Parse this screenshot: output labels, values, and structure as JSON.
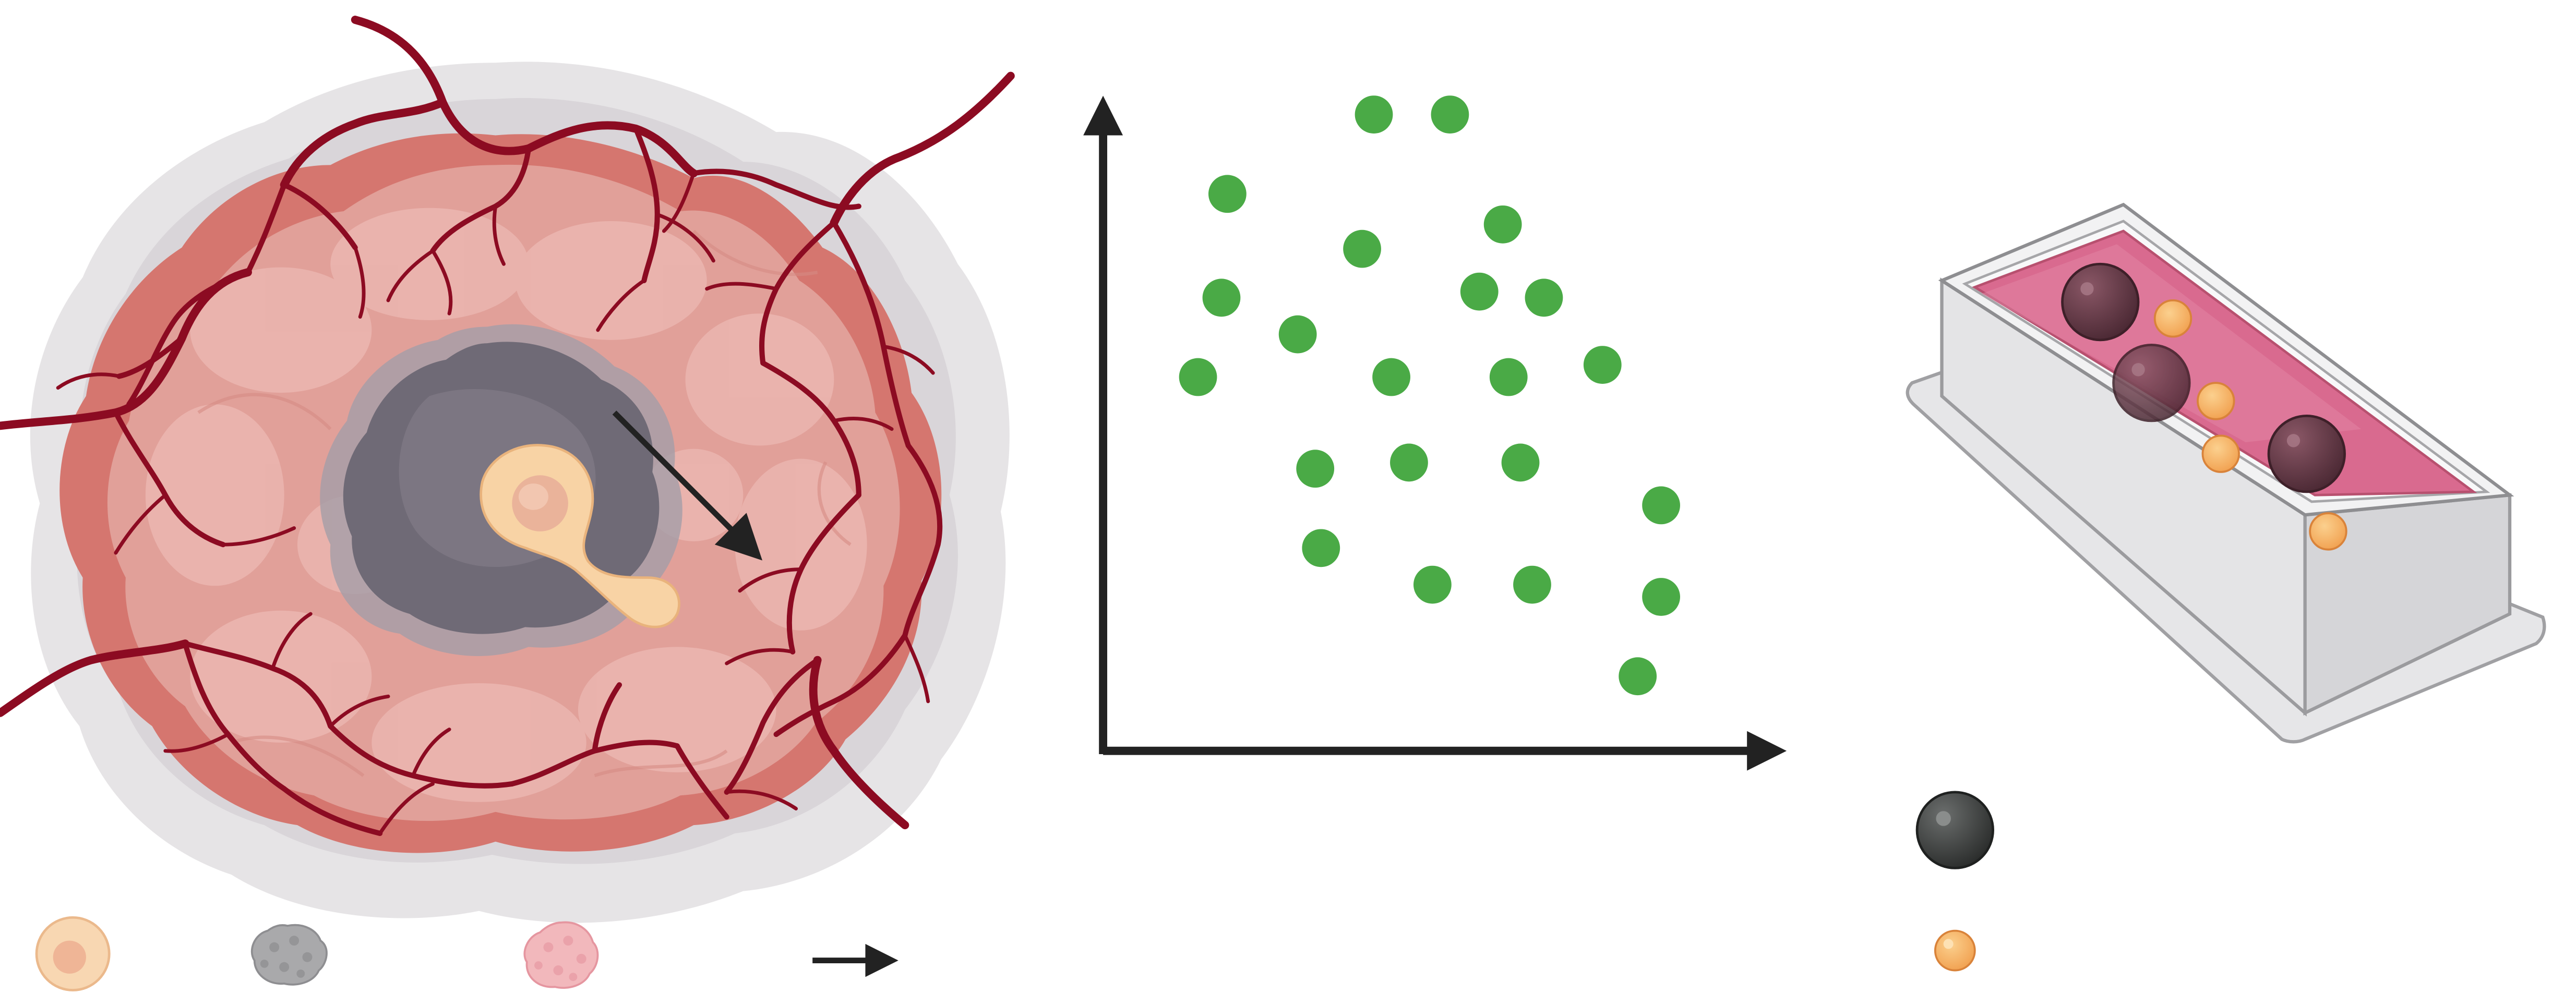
{
  "colors": {
    "vessel": "#8c0b22",
    "tumor_outer_halo": "#dedbde",
    "tumor_rim": "#d9807a",
    "tumor_body": "#e3a39c",
    "tumor_lobe": "#eebbb5",
    "necrotic_core": "#6d6874",
    "cell_body": "#f8d3a5",
    "cell_nucleus": "#eab39a",
    "scatter_point": "#4aaa46",
    "axis": "#222222",
    "tray_wall": "#e3e3e5",
    "tray_outline": "#9b9b9e",
    "gel": "#d96a8f",
    "bead_dark": "#5a3340",
    "bead_legend_dark": "#3a3d3c",
    "small_particle": "#f4a95b",
    "legend_tumor_cell": "#f8d7b2",
    "legend_necrotic": "#a9a9ab",
    "legend_viable": "#f2b8bc"
  },
  "icons": {
    "legend_tumor_cell": "tumor-cell-icon",
    "legend_necrotic": "necrotic-cluster-icon",
    "legend_viable": "viable-cell-cluster-icon",
    "legend_arrow": "migration-arrow-icon",
    "legend_large_bead": "large-bead-icon",
    "legend_small_particle": "small-particle-icon"
  },
  "chart_data": {
    "type": "scatter",
    "title": "",
    "xlabel": "",
    "ylabel": "",
    "xlim": [
      0,
      100
    ],
    "ylim": [
      0,
      100
    ],
    "grid": false,
    "points": [
      {
        "x": 40,
        "y": 98
      },
      {
        "x": 53,
        "y": 98
      },
      {
        "x": 15,
        "y": 85
      },
      {
        "x": 62,
        "y": 80
      },
      {
        "x": 38,
        "y": 76
      },
      {
        "x": 14,
        "y": 68
      },
      {
        "x": 58,
        "y": 69
      },
      {
        "x": 69,
        "y": 68
      },
      {
        "x": 27,
        "y": 62
      },
      {
        "x": 10,
        "y": 55
      },
      {
        "x": 43,
        "y": 55
      },
      {
        "x": 63,
        "y": 55
      },
      {
        "x": 79,
        "y": 57
      },
      {
        "x": 30,
        "y": 40
      },
      {
        "x": 46,
        "y": 41
      },
      {
        "x": 65,
        "y": 41
      },
      {
        "x": 89,
        "y": 34
      },
      {
        "x": 31,
        "y": 27
      },
      {
        "x": 50,
        "y": 21
      },
      {
        "x": 67,
        "y": 21
      },
      {
        "x": 89,
        "y": 19
      },
      {
        "x": 85,
        "y": 6
      }
    ]
  }
}
